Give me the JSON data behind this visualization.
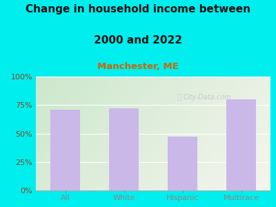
{
  "categories": [
    "All",
    "White",
    "Hispanic",
    "Multirace"
  ],
  "values": [
    71,
    72,
    47,
    80
  ],
  "bar_color": "#C9B8E8",
  "title_line1": "Change in household income between",
  "title_line2": "2000 and 2022",
  "subtitle": "Manchester, ME",
  "title_fontsize": 11,
  "subtitle_fontsize": 9.5,
  "background_color": "#00EEEE",
  "plot_bg_color_topleft": "#cce8cc",
  "plot_bg_color_right": "#f5f5ee",
  "ylabel_ticks": [
    0,
    25,
    50,
    75,
    100
  ],
  "ylabel_labels": [
    "0%",
    "25%",
    "50%",
    "75%",
    "100%"
  ],
  "ylim": [
    0,
    100
  ],
  "watermark": "City-Data.com",
  "tick_color": "#884422",
  "title_color": "#111111",
  "subtitle_color": "#cc6600"
}
